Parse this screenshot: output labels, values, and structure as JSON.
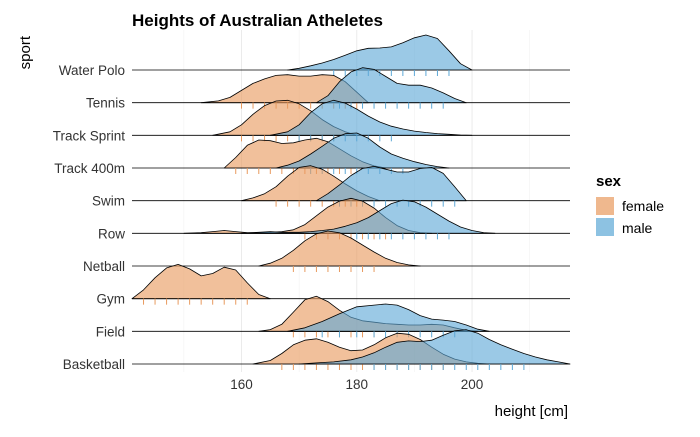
{
  "chart_data": {
    "type": "ridgeline",
    "title": "Heights of Australian Atheletes",
    "xlabel": "height [cm]",
    "ylabel": "sport",
    "xlim": [
      141,
      217
    ],
    "xticks": [
      160,
      180,
      200
    ],
    "grid": true,
    "legend": {
      "title": "sex",
      "placement": "right",
      "entries": [
        {
          "label": "female",
          "color": "#E89A5E"
        },
        {
          "label": "male",
          "color": "#5DA8D6"
        }
      ]
    },
    "categories": [
      "Water Polo",
      "Tennis",
      "Track Sprint",
      "Track 400m",
      "Swim",
      "Row",
      "Netball",
      "Gym",
      "Field",
      "Basketball"
    ],
    "series": [
      {
        "sport": "Water Polo",
        "groups": [
          {
            "sex": "male",
            "x": [
              168,
              170,
              172,
              174,
              176,
              178,
              180,
              182,
              184,
              186,
              188,
              190,
              192,
              194,
              196,
              198,
              200
            ],
            "y": [
              0,
              0.05,
              0.12,
              0.2,
              0.3,
              0.42,
              0.55,
              0.62,
              0.63,
              0.66,
              0.78,
              0.92,
              1.0,
              0.9,
              0.55,
              0.18,
              0
            ]
          }
        ]
      },
      {
        "sport": "Tennis",
        "groups": [
          {
            "sex": "female",
            "x": [
              153,
              156,
              158,
              160,
              162,
              164,
              166,
              168,
              170,
              172,
              174,
              176,
              178,
              180,
              182
            ],
            "y": [
              0,
              0.05,
              0.15,
              0.35,
              0.55,
              0.68,
              0.78,
              0.8,
              0.76,
              0.76,
              0.8,
              0.78,
              0.6,
              0.3,
              0
            ]
          },
          {
            "sex": "male",
            "x": [
              173,
              175,
              177,
              179,
              181,
              183,
              185,
              187,
              189,
              191,
              193,
              195,
              197,
              199
            ],
            "y": [
              0,
              0.2,
              0.6,
              0.88,
              1.0,
              0.95,
              0.75,
              0.55,
              0.5,
              0.5,
              0.42,
              0.28,
              0.12,
              0
            ]
          }
        ]
      },
      {
        "sport": "Track Sprint",
        "groups": [
          {
            "sex": "female",
            "x": [
              155,
              158,
              160,
              162,
              164,
              166,
              168,
              170,
              172,
              174,
              176,
              178,
              180
            ],
            "y": [
              0,
              0.1,
              0.3,
              0.6,
              0.85,
              0.98,
              1.0,
              0.9,
              0.7,
              0.45,
              0.25,
              0.1,
              0
            ]
          },
          {
            "sex": "male",
            "x": [
              165,
              168,
              170,
              172,
              174,
              176,
              178,
              180,
              182,
              184,
              186,
              188,
              190,
              192,
              194,
              196,
              198,
              200
            ],
            "y": [
              0,
              0.1,
              0.3,
              0.65,
              0.9,
              1.0,
              0.92,
              0.75,
              0.55,
              0.38,
              0.26,
              0.18,
              0.12,
              0.08,
              0.05,
              0.03,
              0.01,
              0
            ]
          }
        ]
      },
      {
        "sport": "Track 400m",
        "groups": [
          {
            "sex": "female",
            "x": [
              157,
              159,
              161,
              163,
              165,
              167,
              169,
              171,
              173,
              175,
              177,
              179,
              181,
              183,
              185
            ],
            "y": [
              0,
              0.3,
              0.65,
              0.8,
              0.78,
              0.7,
              0.72,
              0.8,
              0.85,
              0.75,
              0.55,
              0.35,
              0.18,
              0.06,
              0
            ]
          },
          {
            "sex": "male",
            "x": [
              166,
              168,
              170,
              172,
              174,
              176,
              178,
              180,
              182,
              184,
              186,
              188,
              190,
              192,
              194,
              196
            ],
            "y": [
              0,
              0.08,
              0.2,
              0.4,
              0.62,
              0.85,
              0.98,
              1.0,
              0.85,
              0.6,
              0.4,
              0.28,
              0.18,
              0.1,
              0.04,
              0
            ]
          }
        ]
      },
      {
        "sport": "Swim",
        "groups": [
          {
            "sex": "female",
            "x": [
              160,
              162,
              164,
              166,
              168,
              170,
              172,
              174,
              176,
              178,
              180,
              182,
              184
            ],
            "y": [
              0,
              0.08,
              0.2,
              0.4,
              0.7,
              0.95,
              1.0,
              0.9,
              0.7,
              0.48,
              0.28,
              0.12,
              0
            ]
          },
          {
            "sex": "male",
            "x": [
              173,
              175,
              177,
              179,
              181,
              183,
              185,
              187,
              189,
              191,
              193,
              195,
              197,
              199
            ],
            "y": [
              0,
              0.2,
              0.45,
              0.72,
              0.92,
              0.98,
              0.9,
              0.82,
              0.82,
              0.92,
              0.95,
              0.78,
              0.4,
              0
            ]
          }
        ]
      },
      {
        "sport": "Row",
        "groups": [
          {
            "sex": "female",
            "x": [
              150,
              153,
              155,
              157,
              159,
              161,
              163,
              165,
              167,
              169,
              171,
              173,
              175,
              177,
              179,
              181,
              183,
              185,
              187,
              189,
              191,
              193
            ],
            "y": [
              0,
              0.02,
              0.05,
              0.08,
              0.05,
              0.02,
              0.02,
              0.03,
              0.05,
              0.1,
              0.25,
              0.5,
              0.75,
              0.92,
              1.0,
              0.92,
              0.72,
              0.45,
              0.22,
              0.08,
              0.02,
              0
            ]
          },
          {
            "sex": "male",
            "x": [
              160,
              163,
              165,
              167,
              170,
              172,
              174,
              176,
              178,
              180,
              182,
              184,
              186,
              188,
              190,
              192,
              194,
              196,
              198,
              200,
              202,
              204
            ],
            "y": [
              0,
              0.03,
              0.05,
              0.03,
              0.03,
              0.05,
              0.08,
              0.12,
              0.2,
              0.3,
              0.45,
              0.65,
              0.85,
              0.95,
              0.9,
              0.75,
              0.55,
              0.35,
              0.18,
              0.08,
              0.02,
              0
            ]
          }
        ]
      },
      {
        "sport": "Netball",
        "groups": [
          {
            "sex": "female",
            "x": [
              163,
              165,
              167,
              169,
              171,
              173,
              175,
              177,
              179,
              181,
              183,
              185,
              187,
              189,
              191
            ],
            "y": [
              0,
              0.08,
              0.22,
              0.45,
              0.72,
              0.92,
              1.0,
              0.95,
              0.8,
              0.6,
              0.4,
              0.22,
              0.1,
              0.03,
              0
            ]
          }
        ]
      },
      {
        "sport": "Gym",
        "groups": [
          {
            "sex": "female",
            "x": [
              141,
              143,
              145,
              147,
              149,
              151,
              153,
              155,
              157,
              159,
              161,
              163,
              165
            ],
            "y": [
              0,
              0.25,
              0.6,
              0.88,
              0.98,
              0.85,
              0.65,
              0.72,
              0.9,
              0.82,
              0.45,
              0.12,
              0
            ]
          }
        ]
      },
      {
        "sport": "Field",
        "groups": [
          {
            "sex": "female",
            "x": [
              163,
              165,
              167,
              169,
              171,
              173,
              175,
              177,
              179,
              181,
              183,
              185,
              187,
              189,
              191,
              193,
              195,
              197,
              199,
              201
            ],
            "y": [
              0,
              0.05,
              0.2,
              0.55,
              0.9,
              1.0,
              0.85,
              0.6,
              0.4,
              0.3,
              0.26,
              0.22,
              0.2,
              0.18,
              0.18,
              0.2,
              0.18,
              0.1,
              0.03,
              0
            ]
          },
          {
            "sex": "male",
            "x": [
              168,
              171,
              174,
              177,
              180,
              183,
              185,
              187,
              189,
              191,
              193,
              195,
              197,
              199,
              201,
              203
            ],
            "y": [
              0,
              0.1,
              0.28,
              0.5,
              0.7,
              0.75,
              0.78,
              0.75,
              0.62,
              0.45,
              0.35,
              0.32,
              0.28,
              0.18,
              0.06,
              0
            ]
          }
        ]
      },
      {
        "sport": "Basketball",
        "groups": [
          {
            "sex": "female",
            "x": [
              162,
              165,
              167,
              169,
              171,
              173,
              175,
              177,
              179,
              181,
              183,
              185,
              187,
              189,
              191,
              193,
              195,
              197,
              199,
              201,
              203
            ],
            "y": [
              0,
              0.1,
              0.3,
              0.55,
              0.68,
              0.72,
              0.62,
              0.48,
              0.38,
              0.4,
              0.55,
              0.75,
              0.88,
              0.85,
              0.7,
              0.48,
              0.28,
              0.14,
              0.06,
              0.02,
              0
            ]
          },
          {
            "sex": "male",
            "x": [
              170,
              173,
              176,
              179,
              181,
              183,
              185,
              187,
              189,
              191,
              193,
              195,
              197,
              199,
              201,
              203,
              205,
              207,
              209,
              211,
              213,
              215,
              217
            ],
            "y": [
              0,
              0.03,
              0.06,
              0.12,
              0.2,
              0.32,
              0.48,
              0.62,
              0.66,
              0.64,
              0.68,
              0.82,
              0.95,
              0.98,
              0.88,
              0.7,
              0.55,
              0.42,
              0.3,
              0.2,
              0.12,
              0.06,
              0
            ]
          }
        ]
      }
    ]
  }
}
